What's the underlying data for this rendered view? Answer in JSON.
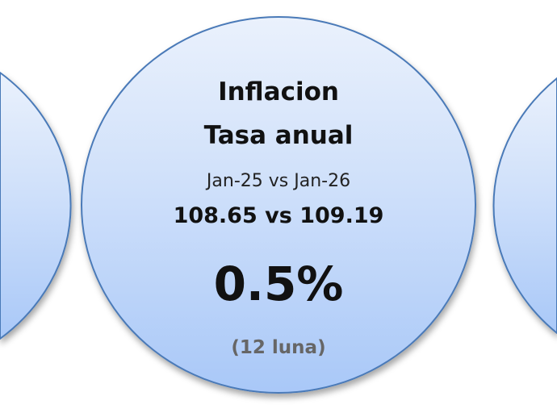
{
  "card": {
    "title_line1": "Inflacion",
    "title_line2": "Tasa anual",
    "period": "Jan-25 vs Jan-26",
    "values": "108.65 vs 109.19",
    "rate": "0.5%",
    "note": "(12 luna)"
  },
  "colors": {
    "border": "#4a7ab8",
    "fill_top": "#eaf1fc",
    "fill_bottom": "#a9c8f8",
    "note": "#666666"
  }
}
